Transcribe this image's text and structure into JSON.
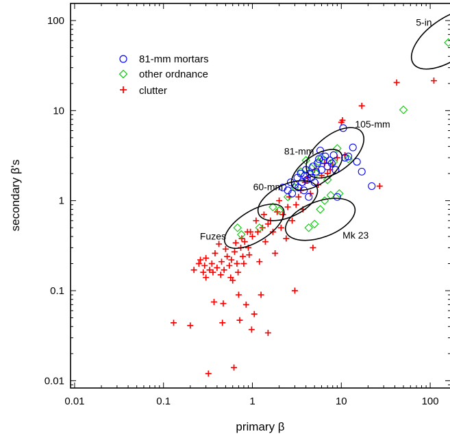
{
  "chart_data": {
    "type": "scatter",
    "title": "",
    "xlabel": "primary β",
    "ylabel": "secondary β's",
    "xscale": "log",
    "yscale": "log",
    "xlim": [
      0.009,
      170
    ],
    "ylim": [
      0.0083,
      155
    ],
    "grid": false,
    "legend_position": "top-left",
    "x_ticks": [
      {
        "value": 0.01,
        "label": "0.01"
      },
      {
        "value": 0.1,
        "label": "0.1"
      },
      {
        "value": 1,
        "label": "1"
      },
      {
        "value": 10,
        "label": "10"
      },
      {
        "value": 100,
        "label": "100"
      }
    ],
    "y_ticks": [
      {
        "value": 0.01,
        "label": "0.01"
      },
      {
        "value": 0.1,
        "label": "0.1"
      },
      {
        "value": 1,
        "label": "1"
      },
      {
        "value": 10,
        "label": "10"
      },
      {
        "value": 100,
        "label": "100"
      }
    ],
    "series": [
      {
        "name": "81-mm mortars",
        "marker": "circle",
        "color": "#0000ff",
        "points": [
          [
            2.2,
            1.4
          ],
          [
            2.5,
            1.3
          ],
          [
            2.7,
            1.6
          ],
          [
            2.8,
            1.2
          ],
          [
            3.0,
            1.5
          ],
          [
            3.2,
            1.8
          ],
          [
            3.3,
            1.4
          ],
          [
            3.5,
            2.0
          ],
          [
            3.6,
            1.6
          ],
          [
            3.8,
            1.3
          ],
          [
            3.9,
            1.9
          ],
          [
            4.0,
            2.2
          ],
          [
            4.1,
            1.7
          ],
          [
            4.3,
            1.1
          ],
          [
            4.4,
            2.0
          ],
          [
            4.6,
            1.8
          ],
          [
            4.8,
            2.4
          ],
          [
            5.0,
            1.6
          ],
          [
            5.2,
            2.1
          ],
          [
            5.4,
            2.6
          ],
          [
            5.6,
            2.9
          ],
          [
            5.8,
            3.6
          ],
          [
            6.0,
            2.2
          ],
          [
            6.3,
            2.8
          ],
          [
            6.6,
            3.1
          ],
          [
            7.0,
            2.4
          ],
          [
            7.4,
            2.8
          ],
          [
            7.8,
            2.6
          ],
          [
            8.2,
            3.2
          ],
          [
            8.6,
            2.2
          ],
          [
            9.0,
            1.1
          ],
          [
            10.5,
            6.4
          ],
          [
            11.0,
            3.0
          ],
          [
            12.0,
            3.1
          ],
          [
            13.5,
            3.9
          ],
          [
            15.0,
            2.7
          ],
          [
            17.0,
            2.1
          ],
          [
            22.0,
            1.45
          ]
        ]
      },
      {
        "name": "other ordnance",
        "marker": "diamond",
        "color": "#00cc00",
        "points": [
          [
            0.68,
            0.5
          ],
          [
            0.75,
            0.42
          ],
          [
            1.2,
            0.5
          ],
          [
            1.7,
            0.85
          ],
          [
            2.0,
            0.78
          ],
          [
            2.5,
            1.1
          ],
          [
            3.0,
            1.4
          ],
          [
            3.5,
            2.1
          ],
          [
            4.0,
            2.8
          ],
          [
            4.3,
            0.5
          ],
          [
            4.6,
            2.3
          ],
          [
            5.0,
            0.55
          ],
          [
            5.2,
            2.0
          ],
          [
            5.5,
            2.7
          ],
          [
            5.8,
            0.8
          ],
          [
            6.0,
            3.0
          ],
          [
            6.5,
            1.0
          ],
          [
            7.0,
            1.7
          ],
          [
            7.6,
            1.15
          ],
          [
            8.2,
            2.7
          ],
          [
            9.0,
            3.8
          ],
          [
            9.5,
            1.2
          ],
          [
            12.0,
            2.9
          ],
          [
            50.0,
            10.2
          ],
          [
            160.0,
            57.0
          ]
        ]
      },
      {
        "name": "clutter",
        "marker": "plus",
        "color": "#ff0000",
        "points": [
          [
            0.13,
            0.044
          ],
          [
            0.2,
            0.041
          ],
          [
            0.22,
            0.17
          ],
          [
            0.25,
            0.2
          ],
          [
            0.26,
            0.22
          ],
          [
            0.28,
            0.16
          ],
          [
            0.29,
            0.19
          ],
          [
            0.3,
            0.23
          ],
          [
            0.3,
            0.14
          ],
          [
            0.32,
            0.012
          ],
          [
            0.33,
            0.17
          ],
          [
            0.35,
            0.2
          ],
          [
            0.36,
            0.16
          ],
          [
            0.37,
            0.075
          ],
          [
            0.38,
            0.26
          ],
          [
            0.4,
            0.18
          ],
          [
            0.42,
            0.33
          ],
          [
            0.44,
            0.15
          ],
          [
            0.45,
            0.21
          ],
          [
            0.46,
            0.044
          ],
          [
            0.47,
            0.072
          ],
          [
            0.48,
            0.17
          ],
          [
            0.5,
            0.29
          ],
          [
            0.52,
            0.24
          ],
          [
            0.55,
            0.19
          ],
          [
            0.57,
            0.14
          ],
          [
            0.58,
            0.22
          ],
          [
            0.6,
            0.13
          ],
          [
            0.62,
            0.014
          ],
          [
            0.63,
            0.27
          ],
          [
            0.65,
            0.34
          ],
          [
            0.67,
            0.2
          ],
          [
            0.69,
            0.16
          ],
          [
            0.7,
            0.09
          ],
          [
            0.72,
            0.047
          ],
          [
            0.74,
            0.3
          ],
          [
            0.76,
            0.38
          ],
          [
            0.78,
            0.24
          ],
          [
            0.8,
            0.2
          ],
          [
            0.82,
            0.35
          ],
          [
            0.85,
            0.07
          ],
          [
            0.88,
            0.45
          ],
          [
            0.9,
            0.3
          ],
          [
            0.92,
            0.25
          ],
          [
            0.95,
            0.45
          ],
          [
            0.98,
            0.037
          ],
          [
            1.0,
            0.4
          ],
          [
            1.05,
            0.055
          ],
          [
            1.1,
            0.6
          ],
          [
            1.15,
            0.45
          ],
          [
            1.2,
            0.21
          ],
          [
            1.25,
            0.09
          ],
          [
            1.3,
            0.5
          ],
          [
            1.35,
            0.7
          ],
          [
            1.4,
            0.35
          ],
          [
            1.5,
            0.034
          ],
          [
            1.5,
            0.55
          ],
          [
            1.6,
            0.6
          ],
          [
            1.7,
            0.45
          ],
          [
            1.8,
            0.26
          ],
          [
            1.9,
            0.75
          ],
          [
            2.0,
            1.0
          ],
          [
            2.1,
            0.5
          ],
          [
            2.2,
            0.7
          ],
          [
            2.4,
            0.38
          ],
          [
            2.5,
            0.85
          ],
          [
            2.6,
            1.1
          ],
          [
            2.8,
            0.6
          ],
          [
            3.0,
            0.1
          ],
          [
            3.1,
            0.9
          ],
          [
            3.3,
            1.1
          ],
          [
            3.5,
            1.3
          ],
          [
            3.7,
            0.8
          ],
          [
            3.9,
            1.6
          ],
          [
            4.2,
            1.8
          ],
          [
            4.5,
            1.2
          ],
          [
            4.8,
            0.3
          ],
          [
            5.0,
            2.2
          ],
          [
            5.5,
            1.5
          ],
          [
            6.0,
            1.9
          ],
          [
            6.5,
            2.6
          ],
          [
            7.0,
            2.0
          ],
          [
            7.5,
            2.2
          ],
          [
            8.0,
            2.5
          ],
          [
            9.0,
            3.0
          ],
          [
            10.0,
            7.4
          ],
          [
            10.3,
            7.8
          ],
          [
            11.0,
            3.2
          ],
          [
            17.0,
            11.3
          ],
          [
            27.0,
            1.45
          ],
          [
            42.0,
            20.5
          ],
          [
            110.0,
            21.5
          ]
        ]
      }
    ],
    "ellipses": [
      {
        "label": "5-in",
        "cx": 160.0,
        "cy": 62.0,
        "rx_decades": 0.48,
        "ry_decades": 0.23,
        "angle_deg": -35
      },
      {
        "label": "105-mm",
        "cx": 8.5,
        "cy": 3.4,
        "rx_decades": 0.38,
        "ry_decades": 0.2,
        "angle_deg": -38
      },
      {
        "label": "81-mm",
        "cx": 5.3,
        "cy": 2.2,
        "rx_decades": 0.33,
        "ry_decades": 0.155,
        "angle_deg": -35
      },
      {
        "label": "60-mm",
        "cx": 2.5,
        "cy": 1.0,
        "rx_decades": 0.36,
        "ry_decades": 0.18,
        "angle_deg": -25
      },
      {
        "label": "Fuzes",
        "cx": 1.05,
        "cy": 0.52,
        "rx_decades": 0.38,
        "ry_decades": 0.17,
        "angle_deg": -32
      },
      {
        "label": "Mk 23",
        "cx": 5.8,
        "cy": 0.62,
        "rx_decades": 0.41,
        "ry_decades": 0.2,
        "angle_deg": -20
      }
    ],
    "annotations": [
      {
        "text": "5-in",
        "x": 85.0,
        "y": 88.0
      },
      {
        "text": "105-mm",
        "x": 22.5,
        "y": 6.5
      },
      {
        "text": "81-mm",
        "x": 3.35,
        "y": 3.25
      },
      {
        "text": "60-mm",
        "x": 1.5,
        "y": 1.3
      },
      {
        "text": "Fuzes",
        "x": 0.36,
        "y": 0.37
      },
      {
        "text": "Mk 23",
        "x": 14.5,
        "y": 0.38
      }
    ]
  }
}
